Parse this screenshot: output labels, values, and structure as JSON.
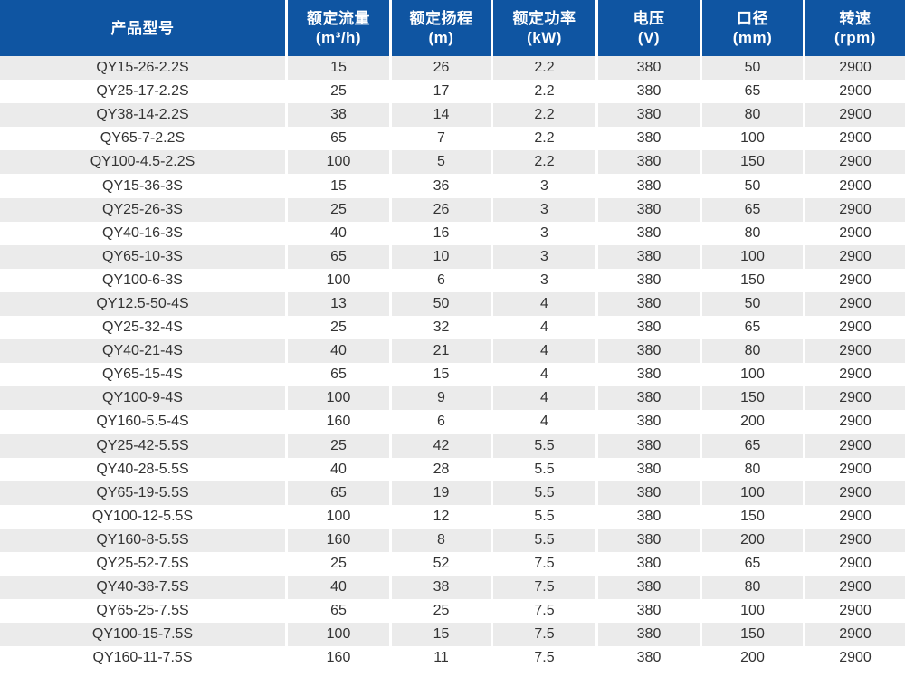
{
  "colors": {
    "header_bg": "#0f55a2",
    "header_text": "#ffffff",
    "row_stripe_bg": "#ebebeb",
    "row_bg": "#ffffff",
    "cell_text": "#333333",
    "separator": "#ffffff"
  },
  "table": {
    "columns": [
      {
        "title": "产品型号",
        "unit": ""
      },
      {
        "title": "额定流量",
        "unit": "(m³/h)"
      },
      {
        "title": "额定扬程",
        "unit": "(m)"
      },
      {
        "title": "额定功率",
        "unit": "(kW)"
      },
      {
        "title": "电压",
        "unit": "(V)"
      },
      {
        "title": "口径",
        "unit": "(mm)"
      },
      {
        "title": "转速",
        "unit": "(rpm)"
      }
    ],
    "rows": [
      [
        "QY15-26-2.2S",
        "15",
        "26",
        "2.2",
        "380",
        "50",
        "2900"
      ],
      [
        "QY25-17-2.2S",
        "25",
        "17",
        "2.2",
        "380",
        "65",
        "2900"
      ],
      [
        "QY38-14-2.2S",
        "38",
        "14",
        "2.2",
        "380",
        "80",
        "2900"
      ],
      [
        "QY65-7-2.2S",
        "65",
        "7",
        "2.2",
        "380",
        "100",
        "2900"
      ],
      [
        "QY100-4.5-2.2S",
        "100",
        "5",
        "2.2",
        "380",
        "150",
        "2900"
      ],
      [
        "QY15-36-3S",
        "15",
        "36",
        "3",
        "380",
        "50",
        "2900"
      ],
      [
        "QY25-26-3S",
        "25",
        "26",
        "3",
        "380",
        "65",
        "2900"
      ],
      [
        "QY40-16-3S",
        "40",
        "16",
        "3",
        "380",
        "80",
        "2900"
      ],
      [
        "QY65-10-3S",
        "65",
        "10",
        "3",
        "380",
        "100",
        "2900"
      ],
      [
        "QY100-6-3S",
        "100",
        "6",
        "3",
        "380",
        "150",
        "2900"
      ],
      [
        "QY12.5-50-4S",
        "13",
        "50",
        "4",
        "380",
        "50",
        "2900"
      ],
      [
        "QY25-32-4S",
        "25",
        "32",
        "4",
        "380",
        "65",
        "2900"
      ],
      [
        "QY40-21-4S",
        "40",
        "21",
        "4",
        "380",
        "80",
        "2900"
      ],
      [
        "QY65-15-4S",
        "65",
        "15",
        "4",
        "380",
        "100",
        "2900"
      ],
      [
        "QY100-9-4S",
        "100",
        "9",
        "4",
        "380",
        "150",
        "2900"
      ],
      [
        "QY160-5.5-4S",
        "160",
        "6",
        "4",
        "380",
        "200",
        "2900"
      ],
      [
        "QY25-42-5.5S",
        "25",
        "42",
        "5.5",
        "380",
        "65",
        "2900"
      ],
      [
        "QY40-28-5.5S",
        "40",
        "28",
        "5.5",
        "380",
        "80",
        "2900"
      ],
      [
        "QY65-19-5.5S",
        "65",
        "19",
        "5.5",
        "380",
        "100",
        "2900"
      ],
      [
        "QY100-12-5.5S",
        "100",
        "12",
        "5.5",
        "380",
        "150",
        "2900"
      ],
      [
        "QY160-8-5.5S",
        "160",
        "8",
        "5.5",
        "380",
        "200",
        "2900"
      ],
      [
        "QY25-52-7.5S",
        "25",
        "52",
        "7.5",
        "380",
        "65",
        "2900"
      ],
      [
        "QY40-38-7.5S",
        "40",
        "38",
        "7.5",
        "380",
        "80",
        "2900"
      ],
      [
        "QY65-25-7.5S",
        "65",
        "25",
        "7.5",
        "380",
        "100",
        "2900"
      ],
      [
        "QY100-15-7.5S",
        "100",
        "15",
        "7.5",
        "380",
        "150",
        "2900"
      ],
      [
        "QY160-11-7.5S",
        "160",
        "11",
        "7.5",
        "380",
        "200",
        "2900"
      ]
    ]
  }
}
